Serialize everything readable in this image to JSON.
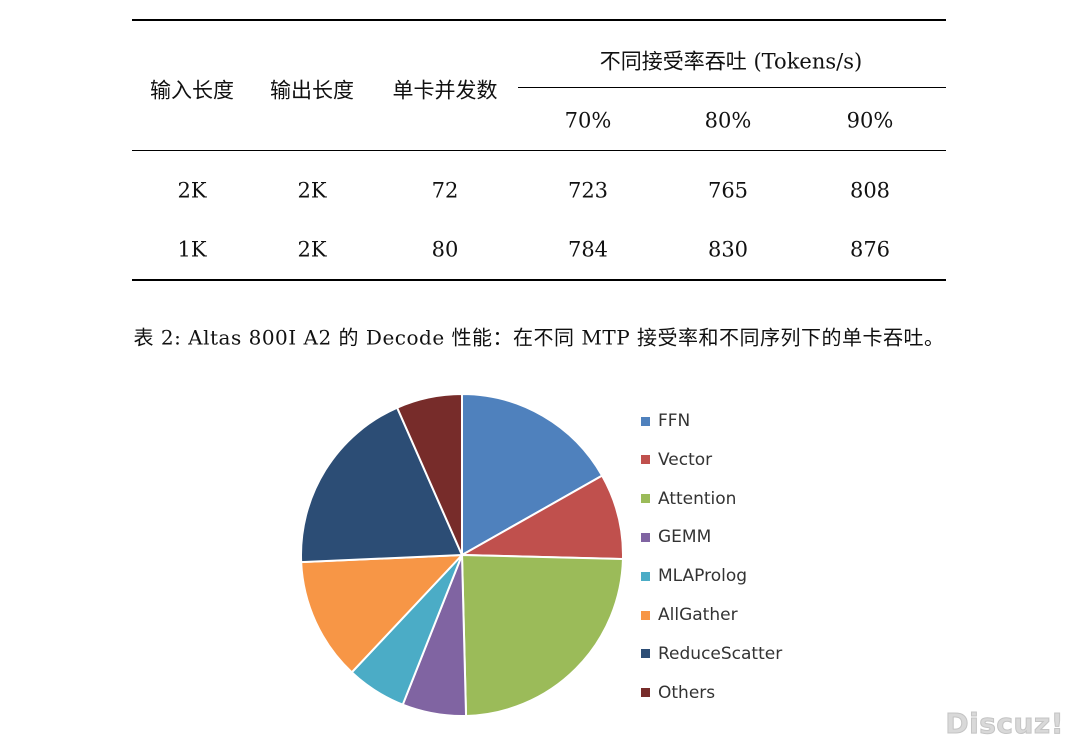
{
  "table": {
    "headers": {
      "input_len": "输入长度",
      "output_len": "输出长度",
      "concurrency": "单卡并发数",
      "throughput_group": "不同接受率吞吐 (Tokens/s)",
      "rate_70": "70%",
      "rate_80": "80%",
      "rate_90": "90%"
    },
    "rows": [
      {
        "input_len": "2K",
        "output_len": "2K",
        "concurrency": "72",
        "rate_70": "723",
        "rate_80": "765",
        "rate_90": "808"
      },
      {
        "input_len": "1K",
        "output_len": "2K",
        "concurrency": "80",
        "rate_70": "784",
        "rate_80": "830",
        "rate_90": "876"
      }
    ],
    "caption": "表 2: Altas 800I A2 的 Decode 性能：在不同 MTP 接受率和不同序列下的单卡吞吐。"
  },
  "chart_data": {
    "type": "pie",
    "title": "",
    "start_angle_deg": 0,
    "direction": "clockwise",
    "legend_position": "right",
    "slices": [
      {
        "label": "FFN",
        "value": 16.8,
        "color": "#4f81bd"
      },
      {
        "label": "Vector",
        "value": 8.6,
        "color": "#c0504d"
      },
      {
        "label": "Attention",
        "value": 24.2,
        "color": "#9bbb59"
      },
      {
        "label": "GEMM",
        "value": 6.4,
        "color": "#8064a2"
      },
      {
        "label": "MLAProlog",
        "value": 6.0,
        "color": "#4bacc6"
      },
      {
        "label": "AllGather",
        "value": 12.3,
        "color": "#f79646"
      },
      {
        "label": "ReduceScatter",
        "value": 19.1,
        "color": "#2c4d75"
      },
      {
        "label": "Others",
        "value": 6.6,
        "color": "#772c2a"
      }
    ]
  },
  "watermark": "Discuz!"
}
